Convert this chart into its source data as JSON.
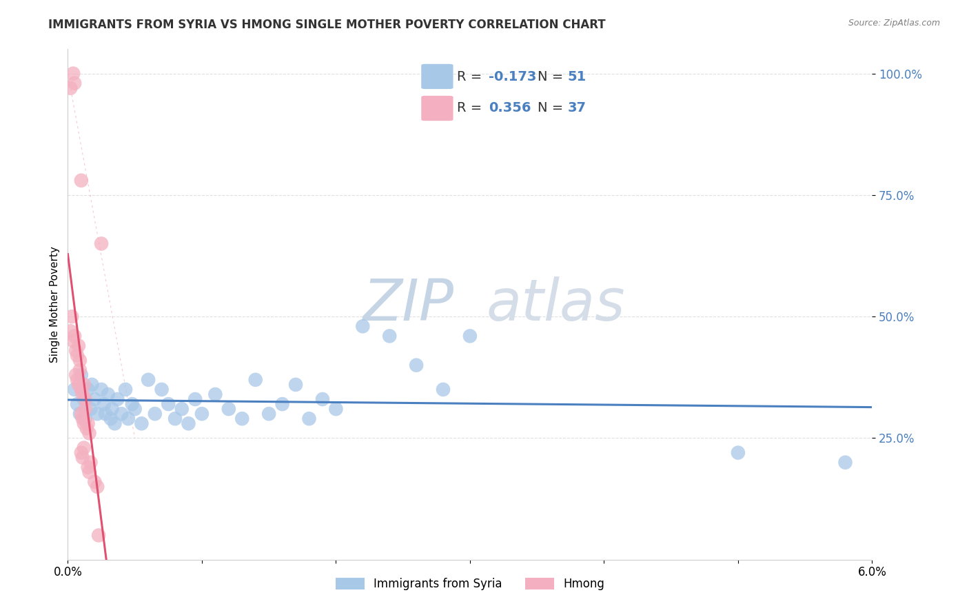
{
  "title": "IMMIGRANTS FROM SYRIA VS HMONG SINGLE MOTHER POVERTY CORRELATION CHART",
  "source": "Source: ZipAtlas.com",
  "ylabel": "Single Mother Poverty",
  "xlim": [
    0.0,
    6.0
  ],
  "ylim": [
    0.0,
    105.0
  ],
  "ytick_values": [
    25,
    50,
    75,
    100
  ],
  "xtick_values": [
    0,
    1,
    2,
    3,
    4,
    5,
    6
  ],
  "blue_label": "Immigrants from Syria",
  "pink_label": "Hmong",
  "blue_r": -0.173,
  "blue_n": 51,
  "pink_r": 0.356,
  "pink_n": 37,
  "blue_color": "#a8c8e8",
  "pink_color": "#f4b0c0",
  "blue_line_color": "#4a7fc0",
  "pink_line_color": "#e05070",
  "blue_scatter": [
    [
      0.05,
      35
    ],
    [
      0.07,
      32
    ],
    [
      0.09,
      30
    ],
    [
      0.1,
      38
    ],
    [
      0.12,
      33
    ],
    [
      0.13,
      29
    ],
    [
      0.15,
      35
    ],
    [
      0.17,
      31
    ],
    [
      0.18,
      36
    ],
    [
      0.2,
      33
    ],
    [
      0.22,
      30
    ],
    [
      0.25,
      35
    ],
    [
      0.27,
      32
    ],
    [
      0.28,
      30
    ],
    [
      0.3,
      34
    ],
    [
      0.32,
      29
    ],
    [
      0.33,
      31
    ],
    [
      0.35,
      28
    ],
    [
      0.37,
      33
    ],
    [
      0.4,
      30
    ],
    [
      0.43,
      35
    ],
    [
      0.45,
      29
    ],
    [
      0.48,
      32
    ],
    [
      0.5,
      31
    ],
    [
      0.55,
      28
    ],
    [
      0.6,
      37
    ],
    [
      0.65,
      30
    ],
    [
      0.7,
      35
    ],
    [
      0.75,
      32
    ],
    [
      0.8,
      29
    ],
    [
      0.85,
      31
    ],
    [
      0.9,
      28
    ],
    [
      0.95,
      33
    ],
    [
      1.0,
      30
    ],
    [
      1.1,
      34
    ],
    [
      1.2,
      31
    ],
    [
      1.3,
      29
    ],
    [
      1.4,
      37
    ],
    [
      1.5,
      30
    ],
    [
      1.6,
      32
    ],
    [
      1.7,
      36
    ],
    [
      1.8,
      29
    ],
    [
      1.9,
      33
    ],
    [
      2.0,
      31
    ],
    [
      2.2,
      48
    ],
    [
      2.4,
      46
    ],
    [
      2.6,
      40
    ],
    [
      2.8,
      35
    ],
    [
      3.0,
      46
    ],
    [
      5.0,
      22
    ],
    [
      5.8,
      20
    ]
  ],
  "pink_scatter": [
    [
      0.02,
      97
    ],
    [
      0.04,
      100
    ],
    [
      0.05,
      98
    ],
    [
      0.1,
      78
    ],
    [
      0.25,
      65
    ],
    [
      0.02,
      47
    ],
    [
      0.03,
      50
    ],
    [
      0.04,
      45
    ],
    [
      0.05,
      46
    ],
    [
      0.06,
      43
    ],
    [
      0.07,
      42
    ],
    [
      0.08,
      44
    ],
    [
      0.09,
      41
    ],
    [
      0.06,
      38
    ],
    [
      0.07,
      37
    ],
    [
      0.08,
      36
    ],
    [
      0.09,
      39
    ],
    [
      0.1,
      35
    ],
    [
      0.11,
      34
    ],
    [
      0.12,
      36
    ],
    [
      0.13,
      33
    ],
    [
      0.1,
      30
    ],
    [
      0.11,
      29
    ],
    [
      0.12,
      28
    ],
    [
      0.13,
      31
    ],
    [
      0.14,
      27
    ],
    [
      0.15,
      28
    ],
    [
      0.16,
      26
    ],
    [
      0.1,
      22
    ],
    [
      0.11,
      21
    ],
    [
      0.12,
      23
    ],
    [
      0.15,
      19
    ],
    [
      0.16,
      18
    ],
    [
      0.17,
      20
    ],
    [
      0.2,
      16
    ],
    [
      0.22,
      15
    ],
    [
      0.23,
      5
    ]
  ],
  "watermark_zip": "ZIP",
  "watermark_atlas": "atlas",
  "watermark_color": "#c8d5e8",
  "background_color": "#ffffff",
  "grid_color": "#e0e0e0",
  "title_fontsize": 12,
  "axis_label_fontsize": 11,
  "tick_fontsize": 12,
  "legend_fontsize": 14
}
